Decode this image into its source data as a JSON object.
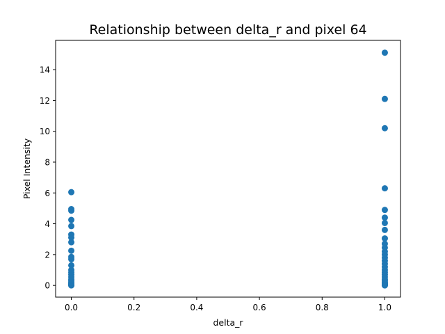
{
  "chart_data": {
    "type": "scatter",
    "title": "Relationship between delta_r and pixel 64",
    "xlabel": "delta_r",
    "ylabel": "Pixel Intensity",
    "xlim": [
      -0.05,
      1.05
    ],
    "ylim": [
      -0.76,
      15.9
    ],
    "xticks": [
      "0.0",
      "0.2",
      "0.4",
      "0.6",
      "0.8",
      "1.0"
    ],
    "yticks": [
      "0",
      "2",
      "4",
      "6",
      "8",
      "10",
      "12",
      "14"
    ],
    "grid": false,
    "marker_color": "#1f77b4",
    "series": [
      {
        "points": [
          [
            0,
            0.0
          ],
          [
            0,
            0.02
          ],
          [
            0,
            0.05
          ],
          [
            0,
            0.1
          ],
          [
            0,
            0.15
          ],
          [
            0,
            0.2
          ],
          [
            0,
            0.3
          ],
          [
            0,
            0.4
          ],
          [
            0,
            0.55
          ],
          [
            0,
            0.7
          ],
          [
            0,
            0.85
          ],
          [
            0,
            1.0
          ],
          [
            0,
            1.3
          ],
          [
            0,
            1.7
          ],
          [
            0,
            1.85
          ],
          [
            0,
            2.25
          ],
          [
            0,
            2.8
          ],
          [
            0,
            3.1
          ],
          [
            0,
            3.3
          ],
          [
            0,
            3.85
          ],
          [
            0,
            4.25
          ],
          [
            0,
            4.85
          ],
          [
            0,
            4.95
          ],
          [
            0,
            6.05
          ],
          [
            1,
            0.0
          ],
          [
            1,
            0.02
          ],
          [
            1,
            0.05
          ],
          [
            1,
            0.1
          ],
          [
            1,
            0.15
          ],
          [
            1,
            0.2
          ],
          [
            1,
            0.3
          ],
          [
            1,
            0.4
          ],
          [
            1,
            0.55
          ],
          [
            1,
            0.7
          ],
          [
            1,
            0.85
          ],
          [
            1,
            1.0
          ],
          [
            1,
            1.2
          ],
          [
            1,
            1.4
          ],
          [
            1,
            1.6
          ],
          [
            1,
            1.8
          ],
          [
            1,
            2.0
          ],
          [
            1,
            2.2
          ],
          [
            1,
            2.45
          ],
          [
            1,
            2.7
          ],
          [
            1,
            3.05
          ],
          [
            1,
            3.6
          ],
          [
            1,
            4.05
          ],
          [
            1,
            4.4
          ],
          [
            1,
            4.9
          ],
          [
            1,
            6.3
          ],
          [
            1,
            10.2
          ],
          [
            1,
            12.1
          ],
          [
            1,
            15.1
          ]
        ]
      }
    ]
  }
}
